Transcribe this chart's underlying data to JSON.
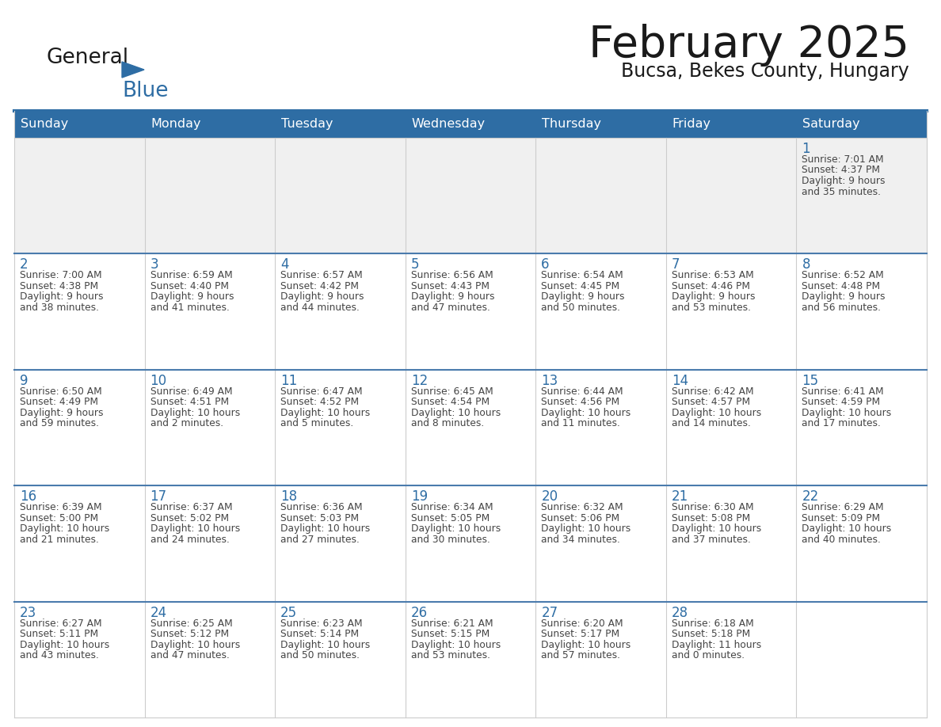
{
  "title": "February 2025",
  "subtitle": "Bucsa, Bekes County, Hungary",
  "days_of_week": [
    "Sunday",
    "Monday",
    "Tuesday",
    "Wednesday",
    "Thursday",
    "Friday",
    "Saturday"
  ],
  "header_bg": "#2E6DA4",
  "header_text": "#FFFFFF",
  "cell_bg_gray": "#F0F0F0",
  "cell_bg_white": "#FFFFFF",
  "cell_border_color": "#CCCCCC",
  "row_separator_color": "#4A7BAD",
  "day_number_color": "#2E6DA4",
  "cell_text_color": "#444444",
  "title_color": "#1A1A1A",
  "subtitle_color": "#1A1A1A",
  "logo_general_color": "#1A1A1A",
  "logo_blue_color": "#2E6DA4",
  "calendar_data": [
    [
      null,
      null,
      null,
      null,
      null,
      null,
      {
        "day": 1,
        "sunrise": "7:01 AM",
        "sunset": "4:37 PM",
        "daylight": "9 hours\nand 35 minutes."
      }
    ],
    [
      {
        "day": 2,
        "sunrise": "7:00 AM",
        "sunset": "4:38 PM",
        "daylight": "9 hours\nand 38 minutes."
      },
      {
        "day": 3,
        "sunrise": "6:59 AM",
        "sunset": "4:40 PM",
        "daylight": "9 hours\nand 41 minutes."
      },
      {
        "day": 4,
        "sunrise": "6:57 AM",
        "sunset": "4:42 PM",
        "daylight": "9 hours\nand 44 minutes."
      },
      {
        "day": 5,
        "sunrise": "6:56 AM",
        "sunset": "4:43 PM",
        "daylight": "9 hours\nand 47 minutes."
      },
      {
        "day": 6,
        "sunrise": "6:54 AM",
        "sunset": "4:45 PM",
        "daylight": "9 hours\nand 50 minutes."
      },
      {
        "day": 7,
        "sunrise": "6:53 AM",
        "sunset": "4:46 PM",
        "daylight": "9 hours\nand 53 minutes."
      },
      {
        "day": 8,
        "sunrise": "6:52 AM",
        "sunset": "4:48 PM",
        "daylight": "9 hours\nand 56 minutes."
      }
    ],
    [
      {
        "day": 9,
        "sunrise": "6:50 AM",
        "sunset": "4:49 PM",
        "daylight": "9 hours\nand 59 minutes."
      },
      {
        "day": 10,
        "sunrise": "6:49 AM",
        "sunset": "4:51 PM",
        "daylight": "10 hours\nand 2 minutes."
      },
      {
        "day": 11,
        "sunrise": "6:47 AM",
        "sunset": "4:52 PM",
        "daylight": "10 hours\nand 5 minutes."
      },
      {
        "day": 12,
        "sunrise": "6:45 AM",
        "sunset": "4:54 PM",
        "daylight": "10 hours\nand 8 minutes."
      },
      {
        "day": 13,
        "sunrise": "6:44 AM",
        "sunset": "4:56 PM",
        "daylight": "10 hours\nand 11 minutes."
      },
      {
        "day": 14,
        "sunrise": "6:42 AM",
        "sunset": "4:57 PM",
        "daylight": "10 hours\nand 14 minutes."
      },
      {
        "day": 15,
        "sunrise": "6:41 AM",
        "sunset": "4:59 PM",
        "daylight": "10 hours\nand 17 minutes."
      }
    ],
    [
      {
        "day": 16,
        "sunrise": "6:39 AM",
        "sunset": "5:00 PM",
        "daylight": "10 hours\nand 21 minutes."
      },
      {
        "day": 17,
        "sunrise": "6:37 AM",
        "sunset": "5:02 PM",
        "daylight": "10 hours\nand 24 minutes."
      },
      {
        "day": 18,
        "sunrise": "6:36 AM",
        "sunset": "5:03 PM",
        "daylight": "10 hours\nand 27 minutes."
      },
      {
        "day": 19,
        "sunrise": "6:34 AM",
        "sunset": "5:05 PM",
        "daylight": "10 hours\nand 30 minutes."
      },
      {
        "day": 20,
        "sunrise": "6:32 AM",
        "sunset": "5:06 PM",
        "daylight": "10 hours\nand 34 minutes."
      },
      {
        "day": 21,
        "sunrise": "6:30 AM",
        "sunset": "5:08 PM",
        "daylight": "10 hours\nand 37 minutes."
      },
      {
        "day": 22,
        "sunrise": "6:29 AM",
        "sunset": "5:09 PM",
        "daylight": "10 hours\nand 40 minutes."
      }
    ],
    [
      {
        "day": 23,
        "sunrise": "6:27 AM",
        "sunset": "5:11 PM",
        "daylight": "10 hours\nand 43 minutes."
      },
      {
        "day": 24,
        "sunrise": "6:25 AM",
        "sunset": "5:12 PM",
        "daylight": "10 hours\nand 47 minutes."
      },
      {
        "day": 25,
        "sunrise": "6:23 AM",
        "sunset": "5:14 PM",
        "daylight": "10 hours\nand 50 minutes."
      },
      {
        "day": 26,
        "sunrise": "6:21 AM",
        "sunset": "5:15 PM",
        "daylight": "10 hours\nand 53 minutes."
      },
      {
        "day": 27,
        "sunrise": "6:20 AM",
        "sunset": "5:17 PM",
        "daylight": "10 hours\nand 57 minutes."
      },
      {
        "day": 28,
        "sunrise": "6:18 AM",
        "sunset": "5:18 PM",
        "daylight": "11 hours\nand 0 minutes."
      },
      null
    ]
  ]
}
